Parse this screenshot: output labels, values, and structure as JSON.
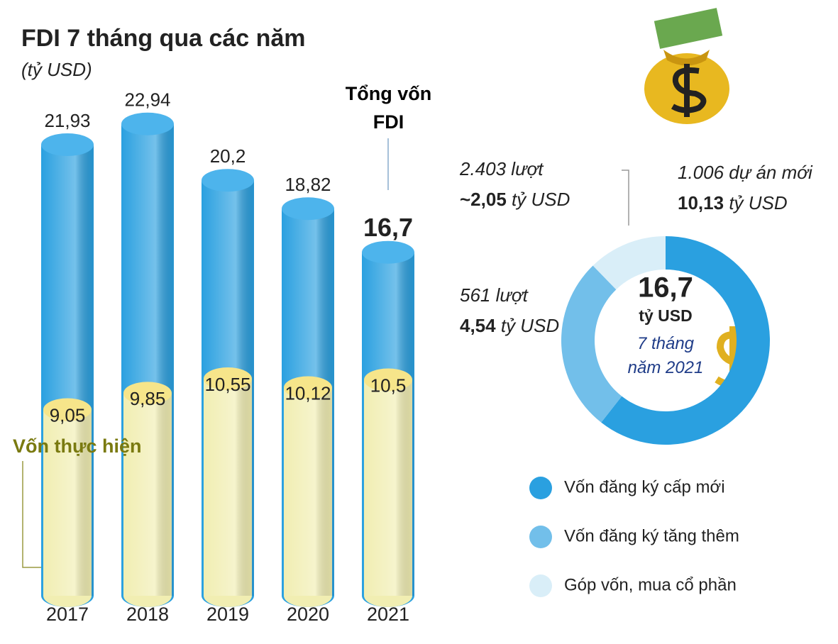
{
  "chart_data": [
    {
      "type": "bar",
      "title": "FDI 7 tháng qua các năm",
      "subtitle": "(tỷ USD)",
      "categories": [
        "2017",
        "2018",
        "2019",
        "2020",
        "2021"
      ],
      "series": [
        {
          "name": "Tổng vốn FDI",
          "color": "#2aa0e0",
          "values": [
            21.93,
            22.94,
            20.2,
            18.82,
            16.7
          ],
          "value_labels": [
            "21,93",
            "22,94",
            "20,2",
            "18,82",
            "16,7"
          ]
        },
        {
          "name": "Vốn thực hiện",
          "color": "#f1eeb2",
          "values": [
            9.05,
            9.85,
            10.55,
            10.12,
            10.5
          ],
          "value_labels": [
            "9,05",
            "9,85",
            "10,55",
            "10,12",
            "10,5"
          ]
        }
      ]
    },
    {
      "type": "pie",
      "center_label": "16,7",
      "unit": "tỷ USD",
      "center_note": "7 tháng năm 2021",
      "categories": [
        "Vốn đăng ký cấp mới",
        "Vốn đăng ký tăng thêm",
        "Góp vốn, mua cổ phần"
      ],
      "colors": [
        "#2aa0e0",
        "#72bfea",
        "#d9eef8"
      ],
      "values": [
        10.13,
        4.54,
        2.05
      ],
      "value_labels": [
        "10,13",
        "4,54",
        "~2,05"
      ],
      "annotations": [
        "1.006 dự án mới",
        "561 lượt",
        "2.403 lượt"
      ]
    }
  ]
}
